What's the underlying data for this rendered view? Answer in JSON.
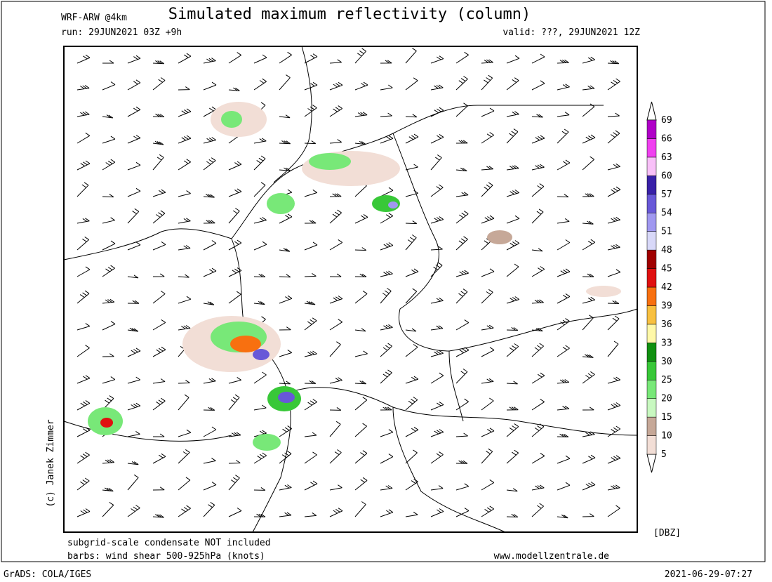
{
  "header": {
    "model": "WRF-ARW @4km",
    "title": "Simulated maximum reflectivity (column)",
    "run": "run: 29JUN2021 03Z +9h",
    "valid": "valid: ???, 29JUN2021 12Z"
  },
  "colorbar": {
    "unit": "[DBZ]",
    "levels": [
      5,
      10,
      15,
      20,
      25,
      30,
      33,
      36,
      39,
      42,
      45,
      48,
      51,
      54,
      57,
      60,
      63,
      66,
      69
    ],
    "colors": [
      "#f2ded6",
      "#c6a898",
      "#c8f8c0",
      "#78e878",
      "#38c838",
      "#109010",
      "#fff8a8",
      "#f8c040",
      "#f87010",
      "#e01010",
      "#a00000",
      "#d8d8f8",
      "#a098f0",
      "#6858d8",
      "#3820a8",
      "#f8c0f8",
      "#f040f0",
      "#b000c8"
    ]
  },
  "footer": {
    "note": "subgrid-scale condensate NOT included",
    "barbs": "barbs: wind shear 500-925hPa (knots)",
    "site": "www.modellzentrale.de",
    "credit": "(c) Janek Zimmer",
    "software": "GrADS: COLA/IGES",
    "timestamp": "2021-06-29-07:27"
  }
}
